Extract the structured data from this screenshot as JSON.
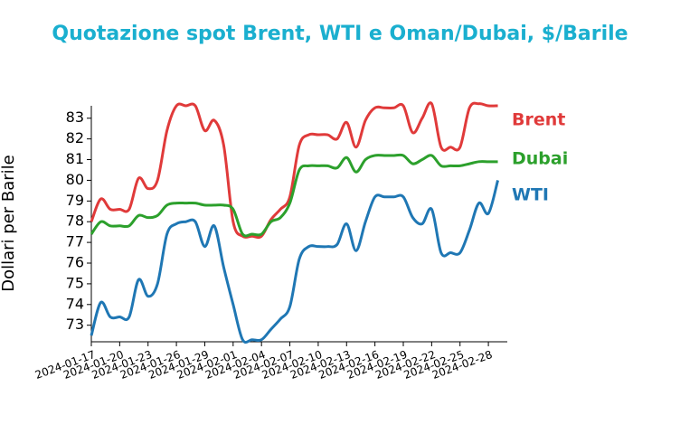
{
  "chart_data": {
    "type": "line",
    "title": "Quotazione spot Brent, WTI e Oman/Dubai, $/Barile",
    "y_label": "Dollari per Barile",
    "x": [
      "2024-01-17",
      "2024-01-18",
      "2024-01-19",
      "2024-01-20",
      "2024-01-21",
      "2024-01-22",
      "2024-01-23",
      "2024-01-24",
      "2024-01-25",
      "2024-01-26",
      "2024-01-27",
      "2024-01-28",
      "2024-01-29",
      "2024-01-30",
      "2024-01-31",
      "2024-02-01",
      "2024-02-02",
      "2024-02-03",
      "2024-02-04",
      "2024-02-05",
      "2024-02-06",
      "2024-02-07",
      "2024-02-08",
      "2024-02-09",
      "2024-02-10",
      "2024-02-11",
      "2024-02-12",
      "2024-02-13",
      "2024-02-14",
      "2024-02-15",
      "2024-02-16",
      "2024-02-17",
      "2024-02-18",
      "2024-02-19",
      "2024-02-20",
      "2024-02-21",
      "2024-02-22",
      "2024-02-23",
      "2024-02-24",
      "2024-02-25",
      "2024-02-26",
      "2024-02-27",
      "2024-02-28",
      "2024-02-29"
    ],
    "series": [
      {
        "name": "Brent",
        "color": "#e03a3a",
        "values": [
          78.0,
          79.1,
          78.6,
          78.6,
          78.6,
          80.1,
          79.6,
          80.0,
          82.4,
          83.6,
          83.6,
          83.6,
          82.4,
          82.9,
          81.7,
          78.0,
          77.3,
          77.3,
          77.3,
          78.1,
          78.6,
          79.2,
          81.7,
          82.2,
          82.2,
          82.2,
          82.0,
          82.8,
          81.6,
          82.9,
          83.5,
          83.5,
          83.5,
          83.6,
          82.3,
          83.0,
          83.7,
          81.6,
          81.6,
          81.6,
          83.5,
          83.7,
          83.6,
          83.6
        ]
      },
      {
        "name": "Dubai",
        "color": "#2ca02c",
        "values": [
          77.4,
          78.0,
          77.8,
          77.8,
          77.8,
          78.3,
          78.2,
          78.3,
          78.8,
          78.9,
          78.9,
          78.9,
          78.8,
          78.8,
          78.8,
          78.6,
          77.4,
          77.4,
          77.4,
          78.0,
          78.2,
          78.9,
          80.5,
          80.7,
          80.7,
          80.7,
          80.6,
          81.1,
          80.4,
          81.0,
          81.2,
          81.2,
          81.2,
          81.2,
          80.8,
          81.0,
          81.2,
          80.7,
          80.7,
          80.7,
          80.8,
          80.9,
          80.9,
          80.9
        ]
      },
      {
        "name": "WTI",
        "color": "#1f77b4",
        "values": [
          72.5,
          74.1,
          73.4,
          73.4,
          73.4,
          75.2,
          74.4,
          75.0,
          77.4,
          77.9,
          78.0,
          78.0,
          76.8,
          77.8,
          75.8,
          74.0,
          72.3,
          72.3,
          72.3,
          72.8,
          73.3,
          73.9,
          76.2,
          76.8,
          76.8,
          76.8,
          76.9,
          77.9,
          76.6,
          78.0,
          79.2,
          79.2,
          79.2,
          79.2,
          78.2,
          77.9,
          78.6,
          76.5,
          76.5,
          76.5,
          77.6,
          78.9,
          78.4,
          80.0
        ]
      }
    ],
    "xlim": [
      "2024-01-17",
      "2024-03-01"
    ],
    "xticks": [
      "2024-01-17",
      "2024-01-20",
      "2024-01-23",
      "2024-01-26",
      "2024-01-29",
      "2024-02-01",
      "2024-02-04",
      "2024-02-07",
      "2024-02-10",
      "2024-02-13",
      "2024-02-16",
      "2024-02-19",
      "2024-02-22",
      "2024-02-25",
      "2024-02-28"
    ],
    "ylim": [
      72.2,
      83.6
    ],
    "yticks": [
      73,
      74,
      75,
      76,
      77,
      78,
      79,
      80,
      81,
      82,
      83
    ],
    "legend": "right"
  }
}
